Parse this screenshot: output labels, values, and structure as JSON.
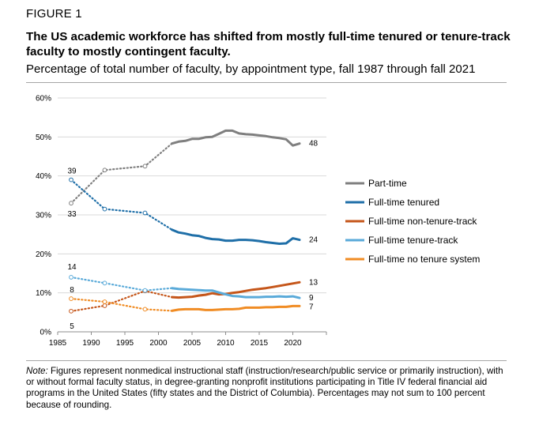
{
  "figure_label": "FIGURE 1",
  "title": "The US academic workforce has shifted from mostly full-time tenured or tenure-track faculty to mostly contingent faculty.",
  "subtitle": "Percentage of total number of faculty, by appointment type, fall 1987 through fall 2021",
  "note": {
    "label": "Note:",
    "text": " Figures represent nonmedical instructional staff (instruction/research/public service or primarily instruction), with or without formal faculty status, in degree-granting nonprofit institutions participating in Title IV federal financial aid programs in the United States (fifty states and the District of Columbia). Percentages may not sum to 100 percent because of rounding."
  },
  "chart_data": {
    "type": "line",
    "title": "Percentage of total number of faculty, by appointment type, fall 1987 through fall 2021",
    "xlabel": "",
    "ylabel": "",
    "xlim": [
      1985,
      2025
    ],
    "ylim": [
      0,
      60
    ],
    "xticks": [
      1985,
      1990,
      1995,
      2000,
      2005,
      2010,
      2015,
      2020
    ],
    "yticks": [
      0,
      10,
      20,
      30,
      40,
      50,
      60
    ],
    "ytick_labels": [
      "0%",
      "10%",
      "20%",
      "30%",
      "40%",
      "50%",
      "60%"
    ],
    "grid": "horizontal",
    "legend_position": "right",
    "early_years_style": "dotted with hollow markers (1987, 1992, 1998)",
    "series": [
      {
        "name": "Part-time",
        "color": "#7f7f7f",
        "dotted": [
          [
            1987,
            33
          ],
          [
            1992,
            41.5
          ],
          [
            1998,
            42.5
          ],
          [
            2002,
            48.3
          ]
        ],
        "solid": [
          [
            2002,
            48.3
          ],
          [
            2003,
            48.8
          ],
          [
            2004,
            49
          ],
          [
            2005,
            49.5
          ],
          [
            2006,
            49.5
          ],
          [
            2007,
            49.9
          ],
          [
            2008,
            50
          ],
          [
            2009,
            50.8
          ],
          [
            2010,
            51.6
          ],
          [
            2011,
            51.6
          ],
          [
            2012,
            50.9
          ],
          [
            2013,
            50.7
          ],
          [
            2014,
            50.6
          ],
          [
            2015,
            50.4
          ],
          [
            2016,
            50.2
          ],
          [
            2017,
            49.9
          ],
          [
            2018,
            49.7
          ],
          [
            2019,
            49.4
          ],
          [
            2020,
            47.8
          ],
          [
            2021,
            48.3
          ]
        ],
        "start_label": "33",
        "end_label": "48"
      },
      {
        "name": "Full-time tenured",
        "color": "#1f6fa8",
        "dotted": [
          [
            1987,
            39
          ],
          [
            1992,
            31.5
          ],
          [
            1998,
            30.5
          ],
          [
            2002,
            26.2
          ]
        ],
        "solid": [
          [
            2002,
            26.2
          ],
          [
            2003,
            25.5
          ],
          [
            2004,
            25.2
          ],
          [
            2005,
            24.8
          ],
          [
            2006,
            24.6
          ],
          [
            2007,
            24.1
          ],
          [
            2008,
            23.8
          ],
          [
            2009,
            23.7
          ],
          [
            2010,
            23.4
          ],
          [
            2011,
            23.4
          ],
          [
            2012,
            23.6
          ],
          [
            2013,
            23.6
          ],
          [
            2014,
            23.5
          ],
          [
            2015,
            23.3
          ],
          [
            2016,
            23.0
          ],
          [
            2017,
            22.8
          ],
          [
            2018,
            22.6
          ],
          [
            2019,
            22.7
          ],
          [
            2020,
            24.0
          ],
          [
            2021,
            23.6
          ]
        ],
        "start_label": "39",
        "end_label": "24"
      },
      {
        "name": "Full-time non-tenure-track",
        "color": "#c5561a",
        "dotted": [
          [
            1987,
            5.3
          ],
          [
            1992,
            6.7
          ],
          [
            1998,
            10.5
          ],
          [
            2002,
            8.9
          ]
        ],
        "solid": [
          [
            2002,
            8.9
          ],
          [
            2003,
            8.8
          ],
          [
            2004,
            8.9
          ],
          [
            2005,
            9.0
          ],
          [
            2006,
            9.3
          ],
          [
            2007,
            9.5
          ],
          [
            2008,
            9.9
          ],
          [
            2009,
            9.6
          ],
          [
            2010,
            9.7
          ],
          [
            2011,
            10.0
          ],
          [
            2012,
            10.2
          ],
          [
            2013,
            10.5
          ],
          [
            2014,
            10.8
          ],
          [
            2015,
            11.0
          ],
          [
            2016,
            11.2
          ],
          [
            2017,
            11.5
          ],
          [
            2018,
            11.8
          ],
          [
            2019,
            12.1
          ],
          [
            2020,
            12.4
          ],
          [
            2021,
            12.7
          ]
        ],
        "start_label": "5",
        "end_label": "13"
      },
      {
        "name": "Full-time tenure-track",
        "color": "#5aaad9",
        "dotted": [
          [
            1987,
            14.0
          ],
          [
            1992,
            12.5
          ],
          [
            1998,
            10.6
          ],
          [
            2002,
            11.2
          ]
        ],
        "solid": [
          [
            2002,
            11.2
          ],
          [
            2003,
            11.0
          ],
          [
            2004,
            10.9
          ],
          [
            2005,
            10.8
          ],
          [
            2006,
            10.7
          ],
          [
            2007,
            10.6
          ],
          [
            2008,
            10.6
          ],
          [
            2009,
            10.1
          ],
          [
            2010,
            9.6
          ],
          [
            2011,
            9.2
          ],
          [
            2012,
            9.1
          ],
          [
            2013,
            8.9
          ],
          [
            2014,
            8.9
          ],
          [
            2015,
            8.9
          ],
          [
            2016,
            9.0
          ],
          [
            2017,
            9.0
          ],
          [
            2018,
            9.1
          ],
          [
            2019,
            9.0
          ],
          [
            2020,
            9.1
          ],
          [
            2021,
            8.7
          ]
        ],
        "start_label": "14",
        "end_label": "9"
      },
      {
        "name": "Full-time no tenure system",
        "color": "#f08c24",
        "dotted": [
          [
            1987,
            8.5
          ],
          [
            1992,
            7.7
          ],
          [
            1998,
            5.8
          ],
          [
            2002,
            5.4
          ]
        ],
        "solid": [
          [
            2002,
            5.4
          ],
          [
            2003,
            5.7
          ],
          [
            2004,
            5.8
          ],
          [
            2005,
            5.8
          ],
          [
            2006,
            5.8
          ],
          [
            2007,
            5.6
          ],
          [
            2008,
            5.6
          ],
          [
            2009,
            5.7
          ],
          [
            2010,
            5.8
          ],
          [
            2011,
            5.8
          ],
          [
            2012,
            5.9
          ],
          [
            2013,
            6.2
          ],
          [
            2014,
            6.2
          ],
          [
            2015,
            6.2
          ],
          [
            2016,
            6.3
          ],
          [
            2017,
            6.3
          ],
          [
            2018,
            6.4
          ],
          [
            2019,
            6.4
          ],
          [
            2020,
            6.6
          ],
          [
            2021,
            6.6
          ]
        ],
        "start_label": "8",
        "end_label": "7"
      }
    ]
  }
}
